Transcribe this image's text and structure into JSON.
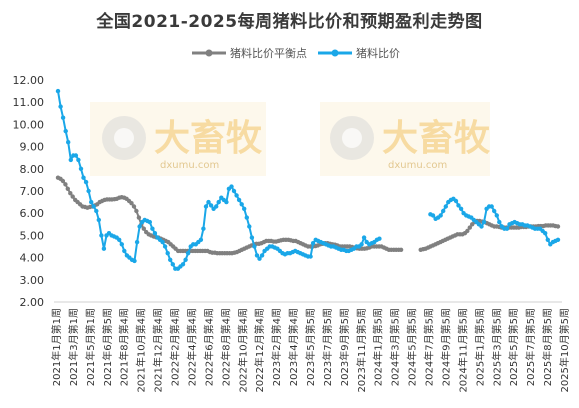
{
  "chart_data": {
    "type": "line",
    "title": "全国2021-2025每周猪料比价和预期盈利走势图",
    "ylim": [
      2.0,
      12.0
    ],
    "yticks": [
      "2.00",
      "3.00",
      "4.00",
      "5.00",
      "6.00",
      "7.00",
      "8.00",
      "9.00",
      "10.00",
      "11.00",
      "12.00"
    ],
    "grid": false,
    "legend_position": "top",
    "week_labels": [
      "2021年1月第1周",
      "2021年3月第1周",
      "2021年5月第1周",
      "2021年6月第5周",
      "2021年8月第4周",
      "2021年10月第4周",
      "2021年12月第4周",
      "2022年2月第4周",
      "2022年4月第4周",
      "2022年6月第4周",
      "2022年8月第4周",
      "2022年10月第4周",
      "2022年12月第4周",
      "2023年2月第4周",
      "2023年4月第4周",
      "2023年5月第5周",
      "2023年7月第5周",
      "2023年9月第5周",
      "2023年11月第5周",
      "2024年1月第5周",
      "2024年3月第5周",
      "2024年5月第5周",
      "2024年7月第5周",
      "2024年9月第5周",
      "2024年11月第5周",
      "2025年1月第5周",
      "2025年3月第5周",
      "2025年5月第5周",
      "2025年7月第5周",
      "2025年8月第5周",
      "2025年10月第5周"
    ],
    "watermark": {
      "brand": "大畜牧",
      "site": "dxumu.com"
    },
    "series": [
      {
        "name": "猪料比价平衡点",
        "color": "#808080",
        "values": [
          7.6,
          7.55,
          7.45,
          7.3,
          7.1,
          6.9,
          6.75,
          6.6,
          6.5,
          6.4,
          6.3,
          6.28,
          6.25,
          6.28,
          6.3,
          6.35,
          6.4,
          6.5,
          6.55,
          6.6,
          6.62,
          6.62,
          6.62,
          6.63,
          6.65,
          6.7,
          6.72,
          6.7,
          6.65,
          6.55,
          6.45,
          6.3,
          6.1,
          5.8,
          5.5,
          5.3,
          5.15,
          5.05,
          5.0,
          4.95,
          4.92,
          4.9,
          4.85,
          4.8,
          4.75,
          4.7,
          4.6,
          4.5,
          4.4,
          4.3,
          4.3,
          4.3,
          4.3,
          4.3,
          4.3,
          4.3,
          4.3,
          4.3,
          4.3,
          4.3,
          4.3,
          4.3,
          4.25,
          4.22,
          4.22,
          4.2,
          4.2,
          4.2,
          4.2,
          4.2,
          4.2,
          4.2,
          4.22,
          4.25,
          4.3,
          4.35,
          4.4,
          4.45,
          4.5,
          4.55,
          4.6,
          4.62,
          4.62,
          4.65,
          4.7,
          4.75,
          4.75,
          4.75,
          4.72,
          4.72,
          4.75,
          4.78,
          4.8,
          4.8,
          4.8,
          4.78,
          4.75,
          4.75,
          4.7,
          4.65,
          4.6,
          4.55,
          4.5,
          4.5,
          4.5,
          4.52,
          4.55,
          4.6,
          4.62,
          4.65,
          4.65,
          4.62,
          4.6,
          4.58,
          4.55,
          4.5,
          4.5,
          4.5,
          4.5,
          4.5,
          4.48,
          4.45,
          4.42,
          4.4,
          4.4,
          4.4,
          4.42,
          4.45,
          4.5,
          4.5,
          4.5,
          4.5,
          4.5,
          4.45,
          4.4,
          4.35,
          4.35,
          4.35,
          4.35,
          4.35,
          4.35,
          null,
          null,
          null,
          null,
          null,
          null,
          null,
          4.35,
          4.38,
          4.4,
          4.45,
          4.5,
          4.55,
          4.6,
          4.65,
          4.7,
          4.75,
          4.8,
          4.85,
          4.9,
          4.95,
          5.0,
          5.05,
          5.05,
          5.05,
          5.1,
          5.2,
          5.35,
          5.5,
          5.6,
          5.65,
          5.65,
          5.62,
          5.6,
          5.55,
          5.5,
          5.45,
          5.4,
          5.4,
          5.38,
          5.35,
          5.35,
          5.35,
          5.35,
          5.35,
          5.35,
          5.35,
          5.35,
          5.38,
          5.38,
          5.38,
          5.4,
          5.4,
          5.4,
          5.4,
          5.42,
          5.42,
          5.42,
          5.45,
          5.45,
          5.45,
          5.45,
          5.42,
          5.4
        ]
      },
      {
        "name": "猪料比价",
        "color": "#1aa7e8",
        "values": [
          11.5,
          10.8,
          10.3,
          9.7,
          9.2,
          8.4,
          8.6,
          8.6,
          8.4,
          8.0,
          7.6,
          7.4,
          7.0,
          6.5,
          6.3,
          6.1,
          5.7,
          5.0,
          4.4,
          5.0,
          5.1,
          5.0,
          4.95,
          4.9,
          4.8,
          4.6,
          4.3,
          4.1,
          4.0,
          3.9,
          3.85,
          4.7,
          5.4,
          5.6,
          5.7,
          5.65,
          5.6,
          5.3,
          5.1,
          4.9,
          4.8,
          4.7,
          4.5,
          4.2,
          3.9,
          3.7,
          3.5,
          3.5,
          3.6,
          3.7,
          3.9,
          4.2,
          4.5,
          4.6,
          4.6,
          4.7,
          4.8,
          5.3,
          6.3,
          6.5,
          6.35,
          6.2,
          6.3,
          6.5,
          6.7,
          6.6,
          6.5,
          7.1,
          7.2,
          7.0,
          6.8,
          6.6,
          6.4,
          6.2,
          5.8,
          5.4,
          4.9,
          4.5,
          4.1,
          3.95,
          4.1,
          4.3,
          4.4,
          4.5,
          4.5,
          4.45,
          4.4,
          4.3,
          4.2,
          4.15,
          4.2,
          4.2,
          4.25,
          4.3,
          4.25,
          4.2,
          4.15,
          4.1,
          4.05,
          4.05,
          4.65,
          4.8,
          4.75,
          4.7,
          4.65,
          4.6,
          4.55,
          4.5,
          4.5,
          4.45,
          4.4,
          4.35,
          4.35,
          4.3,
          4.3,
          4.35,
          4.4,
          4.5,
          4.5,
          4.6,
          4.9,
          4.7,
          4.6,
          4.65,
          4.7,
          4.8,
          4.85,
          null,
          null,
          null,
          null,
          null,
          null,
          null,
          null,
          null,
          null,
          null,
          null,
          null,
          null,
          null,
          null,
          null,
          null,
          null,
          5.95,
          5.9,
          5.75,
          5.8,
          5.9,
          6.1,
          6.3,
          6.5,
          6.6,
          6.65,
          6.55,
          6.35,
          6.2,
          6.0,
          5.9,
          5.85,
          5.8,
          5.7,
          5.6,
          5.5,
          5.4,
          5.6,
          6.2,
          6.3,
          6.3,
          6.1,
          5.9,
          5.6,
          5.4,
          5.3,
          5.3,
          5.5,
          5.55,
          5.6,
          5.55,
          5.5,
          5.5,
          5.45,
          5.45,
          5.4,
          5.35,
          5.3,
          5.3,
          5.3,
          5.2,
          5.1,
          4.8,
          4.6,
          4.7,
          4.75,
          4.8
        ]
      }
    ]
  }
}
